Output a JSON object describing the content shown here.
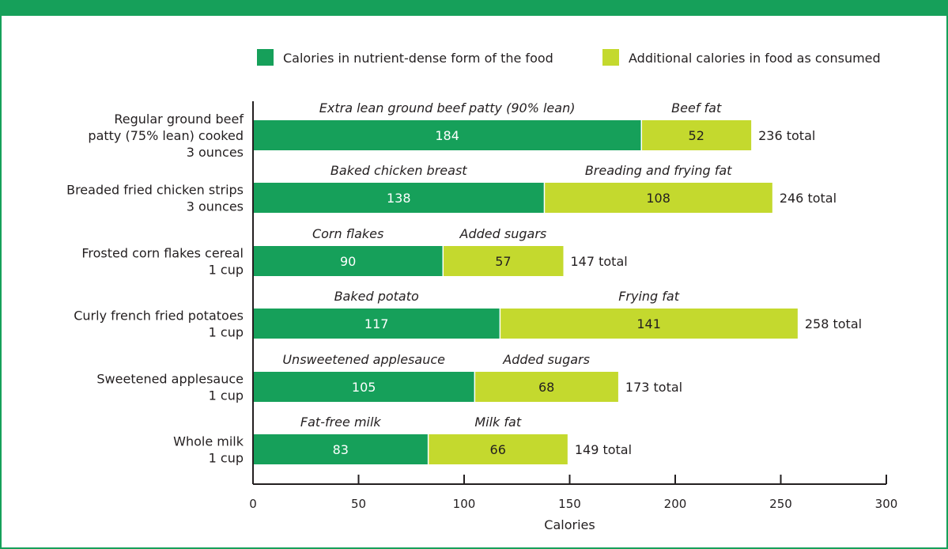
{
  "chart_data": {
    "type": "bar",
    "orientation": "horizontal",
    "stacked": true,
    "xlabel": "Calories",
    "xlim": [
      0,
      300
    ],
    "xticks": [
      0,
      50,
      100,
      150,
      200,
      250,
      300
    ],
    "legend_placement": "top",
    "legend": [
      {
        "name": "Calories in nutrient-dense form of the food",
        "color": "#16a05a"
      },
      {
        "name": "Additional calories in food as consumed",
        "color": "#c4d92e"
      }
    ],
    "categories": [
      {
        "lines": [
          "Regular ground beef",
          "patty (75% lean) cooked",
          "3 ounces"
        ],
        "base_label": "Extra lean ground beef patty (90% lean)",
        "base": 184,
        "extra_label": "Beef fat",
        "extra": 52,
        "total": "236 total"
      },
      {
        "lines": [
          "Breaded fried chicken strips",
          "3 ounces"
        ],
        "base_label": "Baked chicken breast",
        "base": 138,
        "extra_label": "Breading and frying fat",
        "extra": 108,
        "total": "246 total"
      },
      {
        "lines": [
          "Frosted corn flakes cereal",
          "1 cup"
        ],
        "base_label": "Corn flakes",
        "base": 90,
        "extra_label": "Added sugars",
        "extra": 57,
        "total": "147 total"
      },
      {
        "lines": [
          "Curly french fried potatoes",
          "1 cup"
        ],
        "base_label": "Baked potato",
        "base": 117,
        "extra_label": "Frying fat",
        "extra": 141,
        "total": "258 total"
      },
      {
        "lines": [
          "Sweetened applesauce",
          "1 cup"
        ],
        "base_label": "Unsweetened applesauce",
        "base": 105,
        "extra_label": "Added sugars",
        "extra": 68,
        "total": "173 total"
      },
      {
        "lines": [
          "Whole milk",
          "1 cup"
        ],
        "base_label": "Fat-free milk",
        "base": 83,
        "extra_label": "Milk fat",
        "extra": 66,
        "total": "149 total"
      }
    ]
  }
}
